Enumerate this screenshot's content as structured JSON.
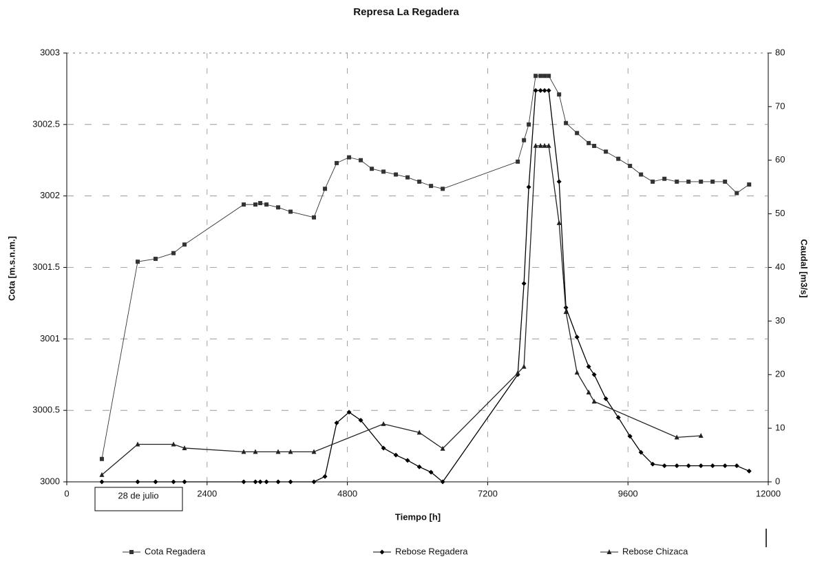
{
  "chart_data": {
    "type": "line",
    "title": "Represa La Regadera",
    "x_label": "Tiempo [h]",
    "y_label": "Cota [m.s.n.m.]",
    "y2_label": "Caudal [m3/s]",
    "annotation": "28 de julio",
    "xlim": [
      0,
      12000
    ],
    "xticks": [
      0,
      2400,
      4800,
      7200,
      9600,
      12000
    ],
    "ylim": [
      3000,
      3003
    ],
    "yticks": [
      3000,
      3000.5,
      3001,
      3001.5,
      3002,
      3002.5,
      3003
    ],
    "y2lim": [
      0,
      80
    ],
    "y2ticks": [
      0,
      10,
      20,
      30,
      40,
      50,
      60,
      70,
      80
    ],
    "grid": true,
    "series": [
      {
        "name": "Cota Regadera",
        "color": "#333333",
        "marker": "square",
        "axis": "y",
        "x": [
          600,
          1213,
          1519,
          1826,
          2014,
          3027,
          3227,
          3310,
          3416,
          3616,
          3828,
          4228,
          4417,
          4617,
          4829,
          5029,
          5218,
          5418,
          5630,
          5830,
          6031,
          6231,
          6431,
          7715,
          7821,
          7903,
          8021,
          8104,
          8174,
          8245,
          8422,
          8539,
          8728,
          8928,
          9022,
          9222,
          9435,
          9635,
          9823,
          10023,
          10224,
          10436,
          10636,
          10848,
          11048,
          11260,
          11461,
          11673
        ],
        "values": [
          3000.16,
          3001.54,
          3001.56,
          3001.6,
          3001.66,
          3001.94,
          3001.94,
          3001.95,
          3001.94,
          3001.92,
          3001.89,
          3001.85,
          3002.05,
          3002.23,
          3002.27,
          3002.25,
          3002.19,
          3002.17,
          3002.15,
          3002.13,
          3002.1,
          3002.07,
          3002.05,
          3002.24,
          3002.39,
          3002.5,
          3002.84,
          3002.84,
          3002.84,
          3002.84,
          3002.71,
          3002.51,
          3002.44,
          3002.37,
          3002.35,
          3002.31,
          3002.26,
          3002.21,
          3002.15,
          3002.1,
          3002.12,
          3002.1,
          3002.1,
          3002.1,
          3002.1,
          3002.1,
          3002.02,
          3002.08
        ]
      },
      {
        "name": "Rebose Regadera",
        "color": "#000000",
        "marker": "diamond",
        "axis": "y2",
        "x": [
          600,
          1213,
          1519,
          1826,
          2014,
          3027,
          3227,
          3310,
          3416,
          3616,
          3828,
          4228,
          4417,
          4617,
          4829,
          5029,
          5418,
          5630,
          5830,
          6031,
          6231,
          6431,
          7715,
          7821,
          7903,
          8021,
          8104,
          8174,
          8245,
          8422,
          8539,
          8728,
          8928,
          9022,
          9222,
          9435,
          9635,
          9823,
          10023,
          10224,
          10436,
          10636,
          10848,
          11048,
          11260,
          11461,
          11673
        ],
        "values": [
          0,
          0,
          0,
          0,
          0,
          0,
          0,
          0,
          0,
          0,
          0,
          0,
          1,
          11,
          13,
          11.5,
          6.3,
          5,
          4,
          2.8,
          1.8,
          0,
          20,
          37,
          55,
          73,
          73,
          73,
          73,
          56,
          32.5,
          27,
          21.5,
          20,
          15.5,
          12,
          8.5,
          5.5,
          3.3,
          3,
          3,
          3,
          3,
          3,
          3,
          3,
          2
        ]
      },
      {
        "name": "Rebose Chizaca",
        "color": "#222222",
        "marker": "triangle",
        "axis": "y2",
        "x": [
          600,
          1213,
          1826,
          2014,
          3027,
          3227,
          3616,
          3828,
          4228,
          5418,
          6031,
          6431,
          7715,
          7821,
          8021,
          8104,
          8174,
          8245,
          8422,
          8539,
          8728,
          8928,
          9022,
          10436,
          10848
        ],
        "values": [
          1.3,
          7,
          7,
          6.3,
          5.6,
          5.6,
          5.6,
          5.6,
          5.6,
          10.8,
          9.2,
          6.2,
          20.3,
          21.5,
          62.7,
          62.7,
          62.7,
          62.7,
          48.3,
          31.7,
          20.4,
          16.7,
          15,
          8.3,
          8.6
        ]
      }
    ]
  }
}
